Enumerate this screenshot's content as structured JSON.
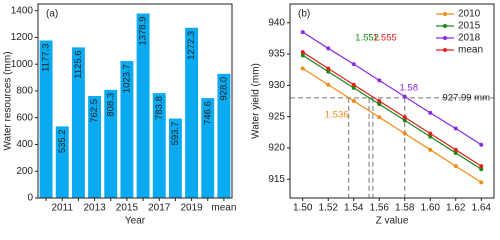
{
  "chart_data": [
    {
      "type": "bar",
      "annotation": "(a)",
      "x_label": "Year",
      "y_label": "Water resources (mm)",
      "categories": [
        null,
        "2011",
        null,
        "2013",
        null,
        "2015",
        null,
        "2017",
        null,
        "2019",
        null,
        "mean"
      ],
      "values": [
        1177.3,
        535.2,
        1125.6,
        762.5,
        808.3,
        1023.7,
        1378.9,
        783.8,
        593.7,
        1272.3,
        746.6,
        928.0
      ],
      "value_labels": [
        "1177.3",
        "535.2",
        "1125.6",
        "762.5",
        "808.3",
        "1023.7",
        "1378.9",
        "783.8",
        "593.7",
        "1272.3",
        "746.6",
        "928.0"
      ],
      "color": "#0aaaf0",
      "ylim": [
        0,
        1450
      ],
      "yticks": [
        0,
        200,
        400,
        600,
        800,
        1000,
        1200,
        1400
      ]
    },
    {
      "type": "line",
      "annotation": "(b)",
      "x_label": "Z value",
      "y_label": "Water yield (mm)",
      "x": [
        1.5,
        1.52,
        1.54,
        1.56,
        1.58,
        1.6,
        1.62,
        1.64
      ],
      "series": [
        {
          "name": "2010",
          "color": "#f08c14",
          "values": [
            932.7,
            930.1,
            927.5,
            924.9,
            922.3,
            919.7,
            917.1,
            914.5
          ]
        },
        {
          "name": "2015",
          "color": "#1a8a1a",
          "values": [
            934.8,
            932.2,
            929.6,
            927.0,
            924.4,
            921.8,
            919.2,
            916.6
          ]
        },
        {
          "name": "2018",
          "color": "#8a2be2",
          "values": [
            938.5,
            935.9,
            933.4,
            930.8,
            928.2,
            925.6,
            923.1,
            920.5
          ]
        },
        {
          "name": "mean",
          "color": "#e0201a",
          "values": [
            935.3,
            932.7,
            930.1,
            927.5,
            924.9,
            922.3,
            919.7,
            917.1
          ]
        }
      ],
      "reference_line": {
        "y": 927.99,
        "label": "927.99 mm"
      },
      "markers": [
        {
          "x": 1.536,
          "color": "#f08c14"
        },
        {
          "x": 1.552,
          "color": "#1a8a1a"
        },
        {
          "x": 1.555,
          "color": "#e0201a"
        },
        {
          "x": 1.58,
          "color": "#8a2be2"
        }
      ],
      "xlim": [
        1.49,
        1.65
      ],
      "xticks": [
        {
          "value": 1.5,
          "label": "1.50"
        },
        1.52,
        1.54,
        1.56,
        1.58,
        {
          "value": 1.6,
          "label": "1.60"
        },
        1.62,
        1.64
      ],
      "ylim": [
        912,
        943
      ],
      "yticks": [
        915,
        920,
        925,
        930,
        935,
        940
      ],
      "legend": "upper right"
    }
  ]
}
